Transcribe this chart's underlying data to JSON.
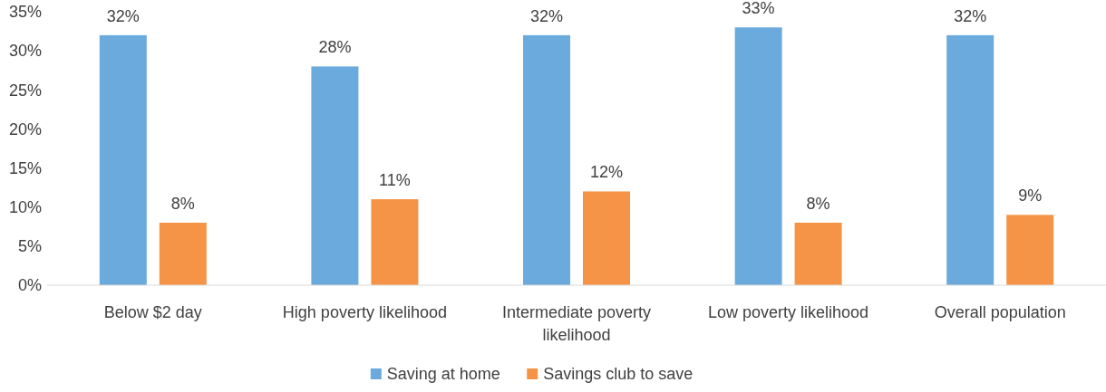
{
  "chart_data": {
    "type": "bar",
    "categories": [
      "Below $2 day",
      "High poverty likelihood",
      "Intermediate poverty likelihood",
      "Low poverty likelihood",
      "Overall population"
    ],
    "series": [
      {
        "name": "Saving at home",
        "color": "#6aaadc",
        "values": [
          32,
          28,
          32,
          33,
          32
        ],
        "value_labels": [
          "32%",
          "28%",
          "32%",
          "33%",
          "32%"
        ]
      },
      {
        "name": "Savings club to save",
        "color": "#f59446",
        "values": [
          8,
          11,
          12,
          8,
          9
        ],
        "value_labels": [
          "8%",
          "11%",
          "12%",
          "8%",
          "9%"
        ]
      }
    ],
    "ylim": [
      0,
      35
    ],
    "yticks": [
      {
        "value": 0,
        "label": "0%"
      },
      {
        "value": 5,
        "label": "5%"
      },
      {
        "value": 10,
        "label": "10%"
      },
      {
        "value": 15,
        "label": "15%"
      },
      {
        "value": 20,
        "label": "20%"
      },
      {
        "value": 25,
        "label": "25%"
      },
      {
        "value": 30,
        "label": "30%"
      },
      {
        "value": 35,
        "label": "35%"
      }
    ],
    "grid": false,
    "legend": "bottom"
  }
}
